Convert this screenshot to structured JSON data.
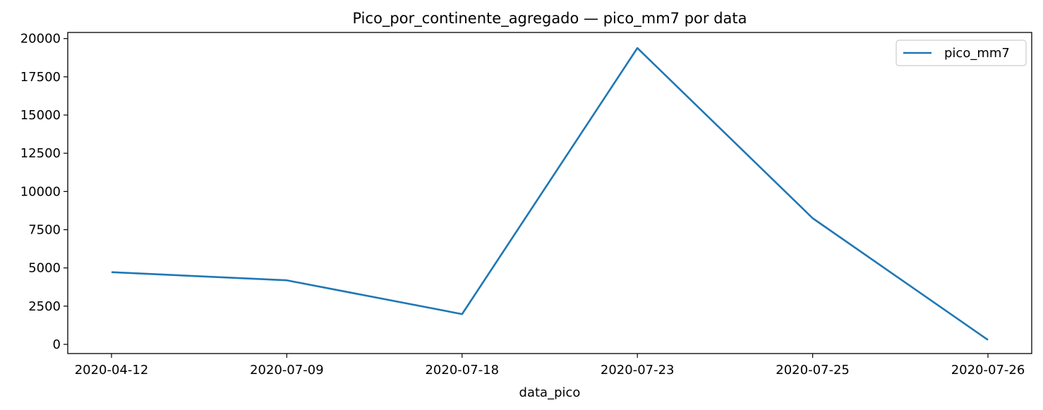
{
  "chart_data": {
    "type": "line",
    "title": "Pico_por_continente_agregado — pico_mm7 por data",
    "xlabel": "data_pico",
    "ylabel": "",
    "categories": [
      "2020-04-12",
      "2020-07-09",
      "2020-07-18",
      "2020-07-23",
      "2020-07-25",
      "2020-07-26"
    ],
    "series": [
      {
        "name": "pico_mm7",
        "values": [
          4720,
          4190,
          1980,
          19380,
          8250,
          290
        ],
        "color": "#1f77b4"
      }
    ],
    "ylim": [
      -600,
      20400
    ],
    "yticks": [
      0,
      2500,
      5000,
      7500,
      10000,
      12500,
      15000,
      17500,
      20000
    ],
    "grid": false,
    "legend": "top-right"
  }
}
